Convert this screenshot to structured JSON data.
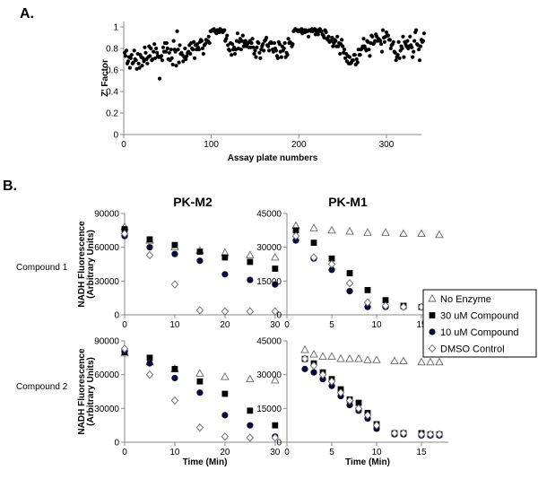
{
  "panels": {
    "a": "A.",
    "b": "B."
  },
  "columns": [
    "PK-M2",
    "PK-M1"
  ],
  "rows": [
    "Compound 1",
    "Compound 2"
  ],
  "chart_data": [
    {
      "type": "scatter",
      "panel": "A.",
      "xlabel": "Assay plate numbers",
      "ylabel": "Z' Factor",
      "xlim": [
        0,
        340
      ],
      "ylim": [
        0,
        1.05
      ],
      "xticks": [
        0,
        100,
        200,
        300
      ],
      "yticks": [
        0,
        0.2,
        0.4,
        0.6,
        0.8,
        1
      ],
      "ytick_labels": [
        "0",
        "0.2",
        "0.4",
        "0.6",
        "0.8",
        "1"
      ],
      "series": [
        {
          "y": [
            0.76,
            0.73,
            0.78,
            0.66,
            0.68,
            0.72,
            0.62,
            0.71,
            0.74,
            0.66,
            0.67,
            0.78,
            0.7,
            0.69,
            0.61,
            0.75,
            0.66,
            0.62,
            0.74,
            0.72,
            0.64,
            0.71,
            0.68,
            0.81,
            0.76,
            0.7,
            0.66,
            0.72,
            0.82,
            0.73,
            0.8,
            0.69,
            0.7,
            0.77,
            0.84,
            0.71,
            0.8,
            0.76,
            0.73,
            0.72,
            0.52,
            0.72,
            0.73,
            0.69,
            0.81,
            0.77,
            0.85,
            0.77,
            0.85,
            0.8,
            0.7,
            0.76,
            0.69,
            0.79,
            0.71,
            0.65,
            0.87,
            0.79,
            0.77,
            0.64,
            0.96,
            0.79,
            0.67,
            0.83,
            0.75,
            0.76,
            0.74,
            0.68,
            0.72,
            0.8,
            0.7,
            0.73,
            0.76,
            0.77,
            0.83,
            0.75,
            0.85,
            0.8,
            0.79,
            0.86,
            0.71,
            0.83,
            0.79,
            0.84,
            0.81,
            0.79,
            0.86,
            0.88,
            0.87,
            0.8,
            0.75,
            0.83,
            0.84,
            0.88,
            0.86,
            0.87,
            0.91,
            0.85,
            0.96,
            0.96,
            0.97,
            0.97,
            0.98,
            0.96,
            0.95,
            0.94,
            0.97,
            0.96,
            0.95,
            0.98,
            0.96,
            0.97,
            0.95,
            0.96,
            0.97,
            0.87,
            0.89,
            0.92,
            0.83,
            0.79,
            0.78,
            0.85,
            0.74,
            0.84,
            0.79,
            0.81,
            0.75,
            0.79,
            0.87,
            0.94,
            0.8,
            0.86,
            0.89,
            0.79,
            0.87,
            0.92,
            0.82,
            0.85,
            0.87,
            0.82,
            0.84,
            0.85,
            0.81,
            0.87,
            0.81,
            0.85,
            0.89,
            0.81,
            0.75,
            0.78,
            0.72,
            0.81,
            0.86,
            0.85,
            0.76,
            0.71,
            0.79,
            0.82,
            0.84,
            0.78,
            0.87,
            0.88,
            0.9,
            0.83,
            0.82,
            0.78,
            0.85,
            0.86,
            0.85,
            0.79,
            0.77,
            0.85,
            0.8,
            0.78,
            0.73,
            0.71,
            0.86,
            0.84,
            0.77,
            0.72,
            0.82,
            0.78,
            0.8,
            0.85,
            0.72,
            0.76,
            0.74,
            0.89,
            0.85,
            0.86,
            0.85,
            0.82,
            0.84,
            0.96,
            0.97,
            0.98,
            0.97,
            0.97,
            0.96,
            0.97,
            0.96,
            0.97,
            0.98,
            0.94,
            0.96,
            0.97,
            0.95,
            0.97,
            0.96,
            0.96,
            0.91,
            0.97,
            0.97,
            0.96,
            0.98,
            0.96,
            0.97,
            0.98,
            0.93,
            0.96,
            0.97,
            0.93,
            0.96,
            0.98,
            0.96,
            0.96,
            0.93,
            0.92,
            0.9,
            0.97,
            0.95,
            0.89,
            0.88,
            0.91,
            0.86,
            0.87,
            0.87,
            0.9,
            0.82,
            0.85,
            0.88,
            0.87,
            0.82,
            0.91,
            0.82,
            0.85,
            0.75,
            0.84,
            0.88,
            0.82,
            0.76,
            0.79,
            0.71,
            0.75,
            0.68,
            0.73,
            0.66,
            0.72,
            0.66,
            0.67,
            0.69,
            0.69,
            0.74,
            0.74,
            0.65,
            0.7,
            0.67,
            0.79,
            0.74,
            0.74,
            0.79,
            0.8,
            0.82,
            0.89,
            0.82,
            0.8,
            0.78,
            0.87,
            0.86,
            0.79,
            0.73,
            0.85,
            0.92,
            0.91,
            0.84,
            0.85,
            0.87,
            0.93,
            0.91,
            0.87,
            0.89,
            0.88,
            0.87,
            0.84,
            0.77,
            0.97,
            0.9,
            0.86,
            0.91,
            0.95,
            0.92,
            0.92,
            0.88,
            0.88,
            0.8,
            0.83,
            0.84,
            0.86,
            0.77,
            0.76,
            0.69,
            0.72,
            0.74,
            0.86,
            0.71,
            0.78,
            0.82,
            0.8,
            0.91,
            0.72,
            0.86,
            0.84,
            0.82,
            0.87,
            0.8,
            0.82,
            0.91,
            0.83,
            0.81,
            0.72,
            0.77,
            0.87,
            0.95,
            0.97,
            0.84,
            0.83,
            0.79,
            0.69,
            0.82,
            0.88,
            0.86,
            0.87,
            0.94
          ]
        }
      ]
    },
    {
      "type": "scatter",
      "panel": "B.",
      "title": "PK-M2",
      "row": "Compound 1",
      "ylabel": "NADH Fluorescence (Arbitrary Units)",
      "xlim": [
        0,
        32
      ],
      "ylim": [
        0,
        90000
      ],
      "xticks": [
        0,
        10,
        20,
        30
      ],
      "yticks": [
        0,
        30000,
        60000,
        90000
      ],
      "series": [
        {
          "name": "No Enzyme",
          "marker": "triangle",
          "x": [
            0,
            5,
            10,
            15,
            20,
            25,
            30
          ],
          "y": [
            78000,
            66000,
            60000,
            57000,
            55000,
            53000,
            51000
          ]
        },
        {
          "name": "30 uM Compound",
          "marker": "square",
          "x": [
            0,
            5,
            10,
            15,
            20,
            25,
            30
          ],
          "y": [
            76000,
            67000,
            62000,
            56000,
            51000,
            47000,
            41000
          ]
        },
        {
          "name": "10 uM Compound",
          "marker": "circle",
          "x": [
            0,
            5,
            10,
            15,
            20,
            25,
            30
          ],
          "y": [
            70000,
            60000,
            54000,
            48000,
            36000,
            31000,
            27000
          ]
        },
        {
          "name": "DMSO Control",
          "marker": "diamond",
          "x": [
            0,
            5,
            10,
            15,
            20,
            25,
            30
          ],
          "y": [
            72000,
            53000,
            27000,
            4000,
            3000,
            3000,
            3000
          ]
        }
      ]
    },
    {
      "type": "scatter",
      "panel": "B.",
      "title": "PK-M1",
      "row": "Compound 1",
      "xlim": [
        0,
        18
      ],
      "ylim": [
        0,
        45000
      ],
      "xticks": [
        0,
        5,
        10,
        15
      ],
      "yticks": [
        0,
        15000,
        30000,
        45000
      ],
      "series": [
        {
          "name": "No Enzyme",
          "marker": "triangle",
          "x": [
            1,
            3,
            5,
            7,
            9,
            11,
            13,
            15,
            17
          ],
          "y": [
            39500,
            38500,
            37500,
            37000,
            36500,
            36500,
            36000,
            36000,
            35500
          ]
        },
        {
          "name": "30 uM Compound",
          "marker": "square",
          "x": [
            1,
            3,
            5,
            7,
            9,
            11,
            13,
            15,
            17
          ],
          "y": [
            37500,
            32000,
            25000,
            18500,
            11000,
            6500,
            4000,
            3500,
            3500
          ]
        },
        {
          "name": "10 uM Compound",
          "marker": "circle",
          "x": [
            1,
            3,
            5,
            7,
            9,
            11,
            13,
            15,
            17
          ],
          "y": [
            33000,
            25000,
            20000,
            10500,
            3500,
            3500,
            3500,
            3500,
            3500
          ]
        },
        {
          "name": "DMSO Control",
          "marker": "diamond",
          "x": [
            1,
            3,
            5,
            7,
            9,
            11,
            13,
            15,
            17
          ],
          "y": [
            35000,
            25500,
            22500,
            14000,
            5500,
            4000,
            3500,
            3500,
            3500
          ]
        }
      ]
    },
    {
      "type": "scatter",
      "panel": "B.",
      "title": "PK-M2",
      "row": "Compound 2",
      "xlabel": "Time (Min)",
      "ylabel": "NADH Fluorescence (Arbitrary Units)",
      "xlim": [
        0,
        32
      ],
      "ylim": [
        0,
        90000
      ],
      "xticks": [
        0,
        10,
        20,
        30
      ],
      "yticks": [
        0,
        30000,
        60000,
        90000
      ],
      "series": [
        {
          "name": "No Enzyme",
          "marker": "triangle",
          "x": [
            0,
            5,
            10,
            15,
            20,
            25,
            30
          ],
          "y": [
            79000,
            71000,
            65000,
            61000,
            58000,
            56000,
            55000
          ]
        },
        {
          "name": "30 uM Compound",
          "marker": "square",
          "x": [
            0,
            5,
            10,
            15,
            20,
            25,
            30
          ],
          "y": [
            80000,
            75000,
            65000,
            54000,
            43000,
            28000,
            15000
          ]
        },
        {
          "name": "10 uM Compound",
          "marker": "circle",
          "x": [
            0,
            5,
            10,
            15,
            20,
            25,
            30
          ],
          "y": [
            81000,
            70000,
            57000,
            44000,
            24000,
            15000,
            5000
          ]
        },
        {
          "name": "DMSO Control",
          "marker": "diamond",
          "x": [
            0,
            5,
            10,
            15,
            20,
            25,
            30
          ],
          "y": [
            83000,
            60000,
            37000,
            13000,
            5000,
            4000,
            4000
          ]
        }
      ]
    },
    {
      "type": "scatter",
      "panel": "B.",
      "title": "PK-M1",
      "row": "Compound 2",
      "xlabel": "Time (Min)",
      "xlim": [
        0,
        18
      ],
      "ylim": [
        0,
        45000
      ],
      "xticks": [
        0,
        5,
        10,
        15
      ],
      "yticks": [
        0,
        15000,
        30000,
        45000
      ],
      "series": [
        {
          "name": "No Enzyme",
          "marker": "triangle",
          "x": [
            2,
            3,
            4,
            5,
            6,
            7,
            8,
            9,
            10,
            12,
            13,
            15,
            16,
            17
          ],
          "y": [
            41000,
            39000,
            38000,
            38000,
            37000,
            37000,
            37000,
            36500,
            36500,
            36000,
            36000,
            35500,
            35500,
            35500
          ]
        },
        {
          "name": "30 uM Compound",
          "marker": "square",
          "x": [
            2,
            3,
            4,
            5,
            6,
            7,
            8,
            9,
            10,
            12,
            13,
            15,
            16,
            17
          ],
          "y": [
            37000,
            35000,
            31000,
            28000,
            23500,
            19000,
            17500,
            13000,
            8000,
            4000,
            4000,
            4000,
            3500,
            3500
          ]
        },
        {
          "name": "10 uM Compound",
          "marker": "circle",
          "x": [
            2,
            3,
            4,
            5,
            6,
            7,
            8,
            9,
            10,
            12,
            13,
            15,
            16,
            17
          ],
          "y": [
            32500,
            31000,
            28000,
            25000,
            20500,
            16500,
            14000,
            10500,
            6000,
            3500,
            3500,
            3000,
            3000,
            3000
          ]
        },
        {
          "name": "DMSO Control",
          "marker": "diamond",
          "x": [
            2,
            3,
            4,
            5,
            6,
            7,
            8,
            9,
            10,
            12,
            13,
            15,
            16,
            17
          ],
          "y": [
            37000,
            34000,
            30000,
            27000,
            22000,
            18500,
            15000,
            12000,
            7500,
            4000,
            4000,
            3500,
            3500,
            3500
          ]
        }
      ]
    }
  ],
  "legend": [
    {
      "label": "No Enzyme",
      "marker": "triangle"
    },
    {
      "label": "30 uM  Compound",
      "marker": "square"
    },
    {
      "label": "10 uM Compound",
      "marker": "circle"
    },
    {
      "label": "DMSO Control",
      "marker": "diamond"
    }
  ],
  "colors": {
    "axis": "#888888",
    "marker": "#000000",
    "circle_fill": "#0b0b3a",
    "open_marker_stroke": "#666666"
  }
}
